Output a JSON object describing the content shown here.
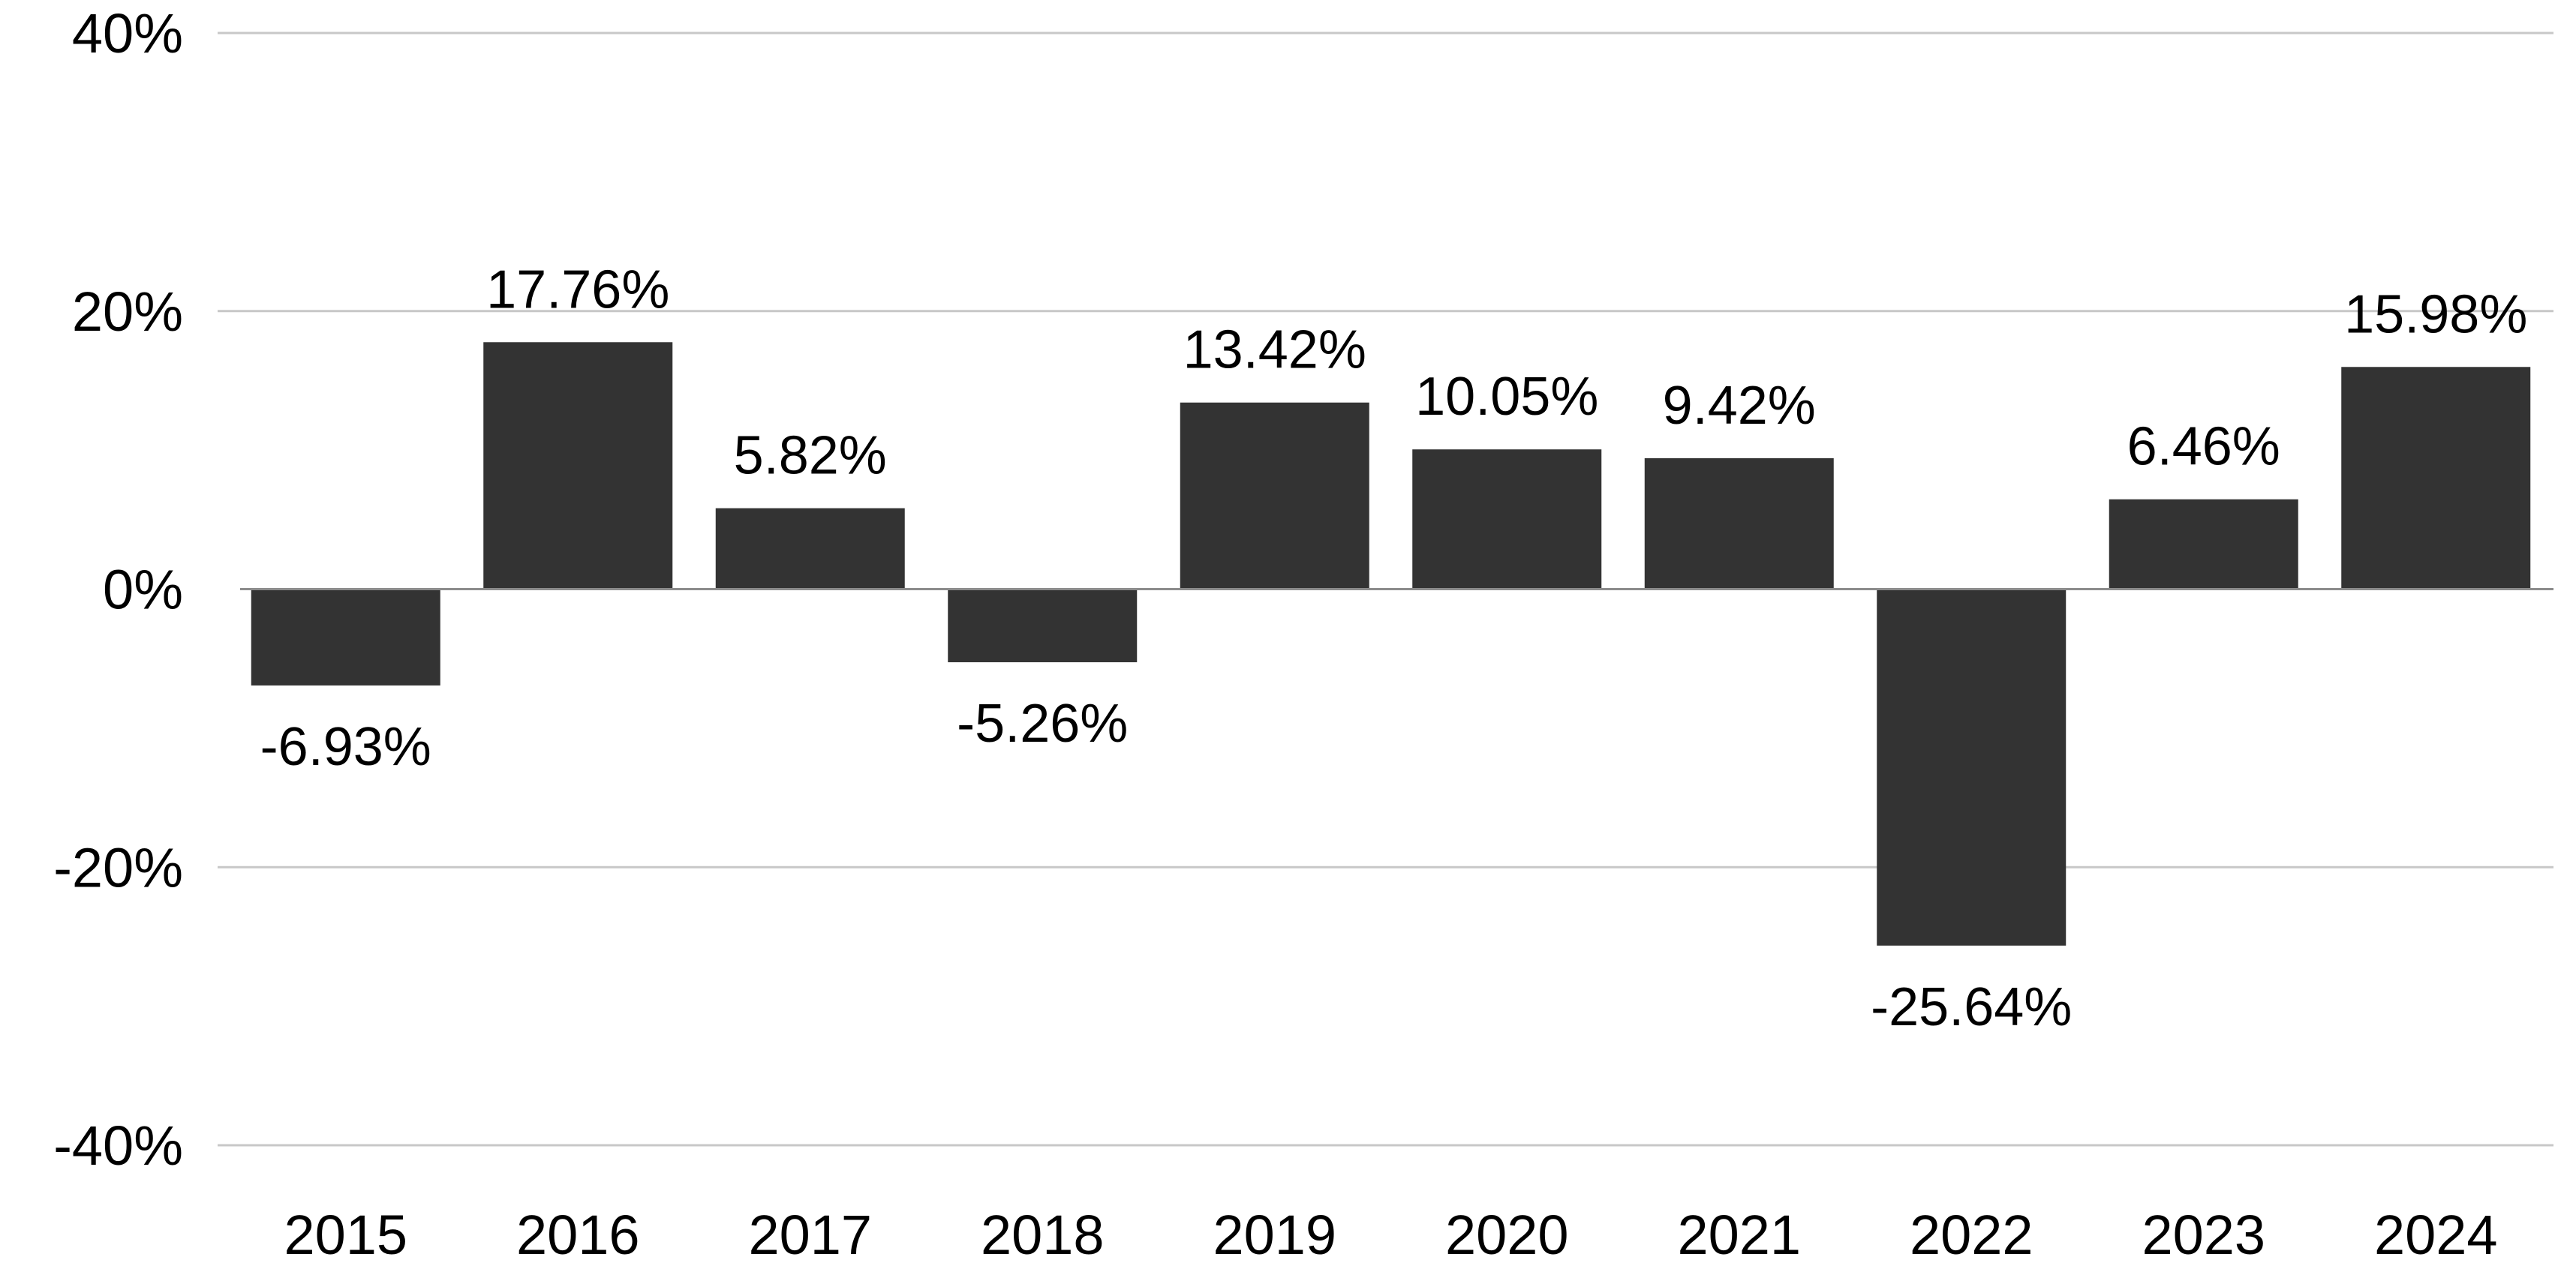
{
  "chart_data": {
    "type": "bar",
    "categories": [
      "2015",
      "2016",
      "2017",
      "2018",
      "2019",
      "2020",
      "2021",
      "2022",
      "2023",
      "2024"
    ],
    "values": [
      -6.93,
      17.76,
      5.82,
      -5.26,
      13.42,
      10.05,
      9.42,
      -25.64,
      6.46,
      15.98
    ],
    "data_labels": [
      "-6.93%",
      "17.76%",
      "5.82%",
      "-5.26%",
      "13.42%",
      "10.05%",
      "9.42%",
      "-25.64%",
      "6.46%",
      "15.98%"
    ],
    "ylim": [
      -40,
      40
    ],
    "yticks": [
      40,
      20,
      0,
      -20,
      -40
    ],
    "ytick_labels": [
      "40%",
      "20%",
      "0%",
      "-20%",
      "-40%"
    ],
    "grid": true,
    "legend": "none",
    "colors": {
      "bar": "#333333",
      "grid": "#c8c8c8",
      "zero_line": "#8c8c8c",
      "text": "#000000"
    }
  }
}
